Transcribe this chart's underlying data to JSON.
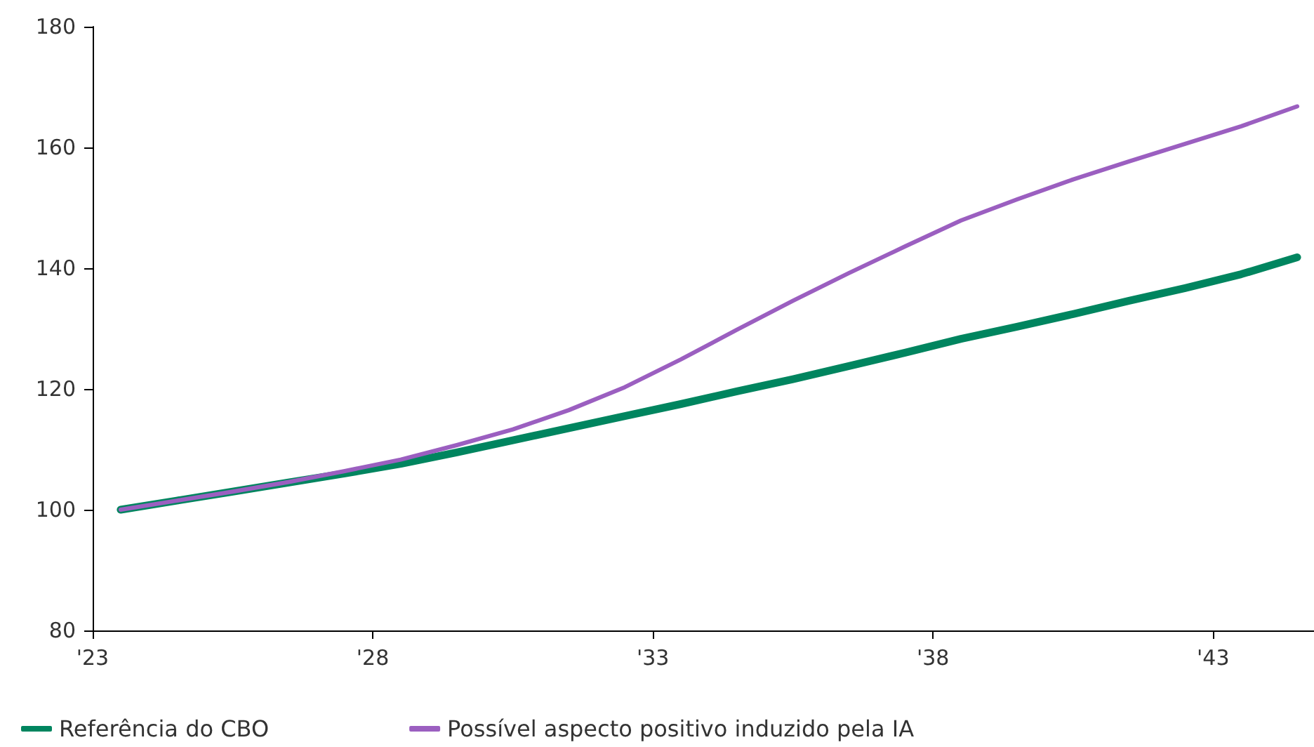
{
  "chart_data": {
    "type": "line",
    "x": [
      2023.5,
      2024.5,
      2025.5,
      2026.5,
      2027.5,
      2028.5,
      2029.5,
      2030.5,
      2031.5,
      2032.5,
      2033.5,
      2034.5,
      2035.5,
      2036.5,
      2037.5,
      2038.5,
      2039.5,
      2040.5,
      2041.5,
      2042.5,
      2043.5,
      2044.5
    ],
    "series": [
      {
        "name": "Referência do CBO",
        "color": "#00855f",
        "values": [
          100.0,
          101.5,
          103.0,
          104.5,
          106.0,
          107.6,
          109.5,
          111.5,
          113.5,
          115.5,
          117.5,
          119.6,
          121.6,
          123.8,
          126.0,
          128.3,
          130.3,
          132.4,
          134.6,
          136.7,
          139.0,
          141.8
        ]
      },
      {
        "name": "Possível aspecto positivo induzido pela IA",
        "color": "#9b5fc0",
        "values": [
          100.0,
          101.5,
          103.0,
          104.6,
          106.4,
          108.3,
          110.7,
          113.3,
          116.5,
          120.3,
          124.9,
          129.8,
          134.6,
          139.2,
          143.6,
          147.9,
          151.4,
          154.7,
          157.7,
          160.6,
          163.5,
          166.8
        ]
      }
    ],
    "xlim": [
      2023,
      2044.8
    ],
    "xticks": [
      {
        "value": 2023,
        "label": "'23"
      },
      {
        "value": 2028,
        "label": "'28"
      },
      {
        "value": 2033,
        "label": "'33"
      },
      {
        "value": 2038,
        "label": "'38"
      },
      {
        "value": 2043,
        "label": "'43"
      }
    ],
    "ylim": [
      80,
      180
    ],
    "yticks": [
      80,
      100,
      120,
      140,
      160,
      180
    ],
    "grid": false,
    "legend": "bottom left",
    "marker": "none",
    "line_style": "solid"
  }
}
